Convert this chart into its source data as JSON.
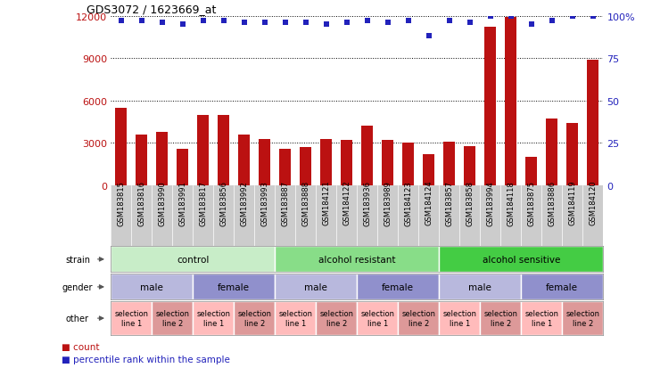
{
  "title": "GDS3072 / 1623669_at",
  "samples": [
    "GSM183815",
    "GSM183816",
    "GSM183990",
    "GSM183991",
    "GSM183817",
    "GSM183856",
    "GSM183992",
    "GSM183993",
    "GSM183887",
    "GSM183888",
    "GSM184121",
    "GSM184122",
    "GSM183936",
    "GSM183989",
    "GSM184123",
    "GSM184124",
    "GSM183857",
    "GSM183858",
    "GSM183994",
    "GSM184118",
    "GSM183875",
    "GSM183886",
    "GSM184119",
    "GSM184120"
  ],
  "counts": [
    5500,
    3600,
    3800,
    2600,
    5000,
    5000,
    3600,
    3300,
    2600,
    2700,
    3300,
    3200,
    4200,
    3200,
    3000,
    2200,
    3100,
    2800,
    11200,
    11900,
    2000,
    4700,
    4400,
    8900
  ],
  "percentile": [
    97,
    97,
    96,
    95,
    97,
    97,
    96,
    96,
    96,
    96,
    95,
    96,
    97,
    96,
    97,
    88,
    97,
    96,
    100,
    100,
    95,
    97,
    100,
    100
  ],
  "bar_color": "#bb1111",
  "dot_color": "#2222bb",
  "ylim_left": [
    0,
    12000
  ],
  "ylim_right": [
    0,
    100
  ],
  "yticks_left": [
    0,
    3000,
    6000,
    9000,
    12000
  ],
  "yticks_right": [
    0,
    25,
    50,
    75,
    100
  ],
  "grid_values": [
    3000,
    6000,
    9000,
    12000
  ],
  "strain_groups": [
    {
      "label": "control",
      "start": 0,
      "end": 8,
      "color": "#c8edc8"
    },
    {
      "label": "alcohol resistant",
      "start": 8,
      "end": 16,
      "color": "#88dd88"
    },
    {
      "label": "alcohol sensitive",
      "start": 16,
      "end": 24,
      "color": "#44cc44"
    }
  ],
  "gender_groups": [
    {
      "label": "male",
      "start": 0,
      "end": 4,
      "color": "#b8b8dd"
    },
    {
      "label": "female",
      "start": 4,
      "end": 8,
      "color": "#9090cc"
    },
    {
      "label": "male",
      "start": 8,
      "end": 12,
      "color": "#b8b8dd"
    },
    {
      "label": "female",
      "start": 12,
      "end": 16,
      "color": "#9090cc"
    },
    {
      "label": "male",
      "start": 16,
      "end": 20,
      "color": "#b8b8dd"
    },
    {
      "label": "female",
      "start": 20,
      "end": 24,
      "color": "#9090cc"
    }
  ],
  "other_groups": [
    {
      "label": "selection\nline 1",
      "start": 0,
      "end": 2,
      "color": "#ffbbbb"
    },
    {
      "label": "selection\nline 2",
      "start": 2,
      "end": 4,
      "color": "#dd9999"
    },
    {
      "label": "selection\nline 1",
      "start": 4,
      "end": 6,
      "color": "#ffbbbb"
    },
    {
      "label": "selection\nline 2",
      "start": 6,
      "end": 8,
      "color": "#dd9999"
    },
    {
      "label": "selection\nline 1",
      "start": 8,
      "end": 10,
      "color": "#ffbbbb"
    },
    {
      "label": "selection\nline 2",
      "start": 10,
      "end": 12,
      "color": "#dd9999"
    },
    {
      "label": "selection\nline 1",
      "start": 12,
      "end": 14,
      "color": "#ffbbbb"
    },
    {
      "label": "selection\nline 2",
      "start": 14,
      "end": 16,
      "color": "#dd9999"
    },
    {
      "label": "selection\nline 1",
      "start": 16,
      "end": 18,
      "color": "#ffbbbb"
    },
    {
      "label": "selection\nline 2",
      "start": 18,
      "end": 20,
      "color": "#dd9999"
    },
    {
      "label": "selection\nline 1",
      "start": 20,
      "end": 22,
      "color": "#ffbbbb"
    },
    {
      "label": "selection\nline 2",
      "start": 22,
      "end": 24,
      "color": "#dd9999"
    }
  ],
  "row_labels": [
    "strain",
    "gender",
    "other"
  ],
  "legend_count_label": "count",
  "legend_pct_label": "percentile rank within the sample",
  "bg_color": "#ffffff",
  "tick_bg_color": "#cccccc"
}
